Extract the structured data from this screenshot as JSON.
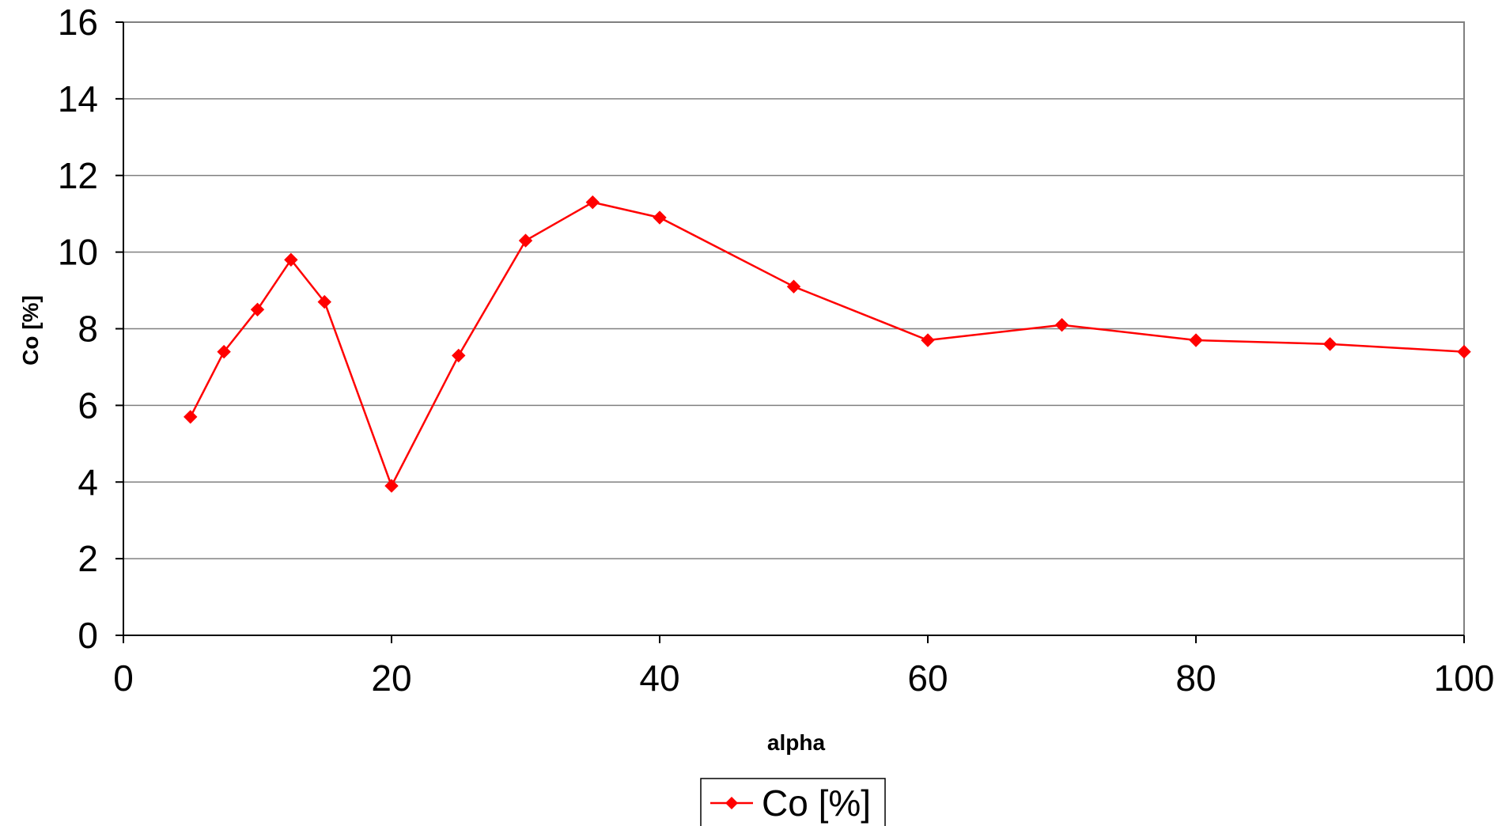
{
  "chart_data": {
    "type": "line",
    "title": "",
    "xlabel": "alpha",
    "ylabel": "Co [%]",
    "xlim": [
      0,
      100
    ],
    "ylim": [
      0,
      16
    ],
    "x_ticks": [
      "0",
      "20",
      "40",
      "60",
      "80",
      "100"
    ],
    "y_ticks": [
      "0",
      "2",
      "4",
      "6",
      "8",
      "10",
      "12",
      "14",
      "16"
    ],
    "grid": "horizontal",
    "legend_position": "bottom-center",
    "series": [
      {
        "name": "Co [%]",
        "color": "#ff0000",
        "marker": "diamond",
        "x": [
          5,
          7.5,
          10,
          12.5,
          15,
          20,
          25,
          30,
          35,
          40,
          50,
          60,
          70,
          80,
          90,
          100
        ],
        "y": [
          5.7,
          7.4,
          8.5,
          9.8,
          8.7,
          3.9,
          7.3,
          10.3,
          11.3,
          10.9,
          9.1,
          7.7,
          8.1,
          7.7,
          7.6,
          7.4
        ]
      }
    ]
  }
}
